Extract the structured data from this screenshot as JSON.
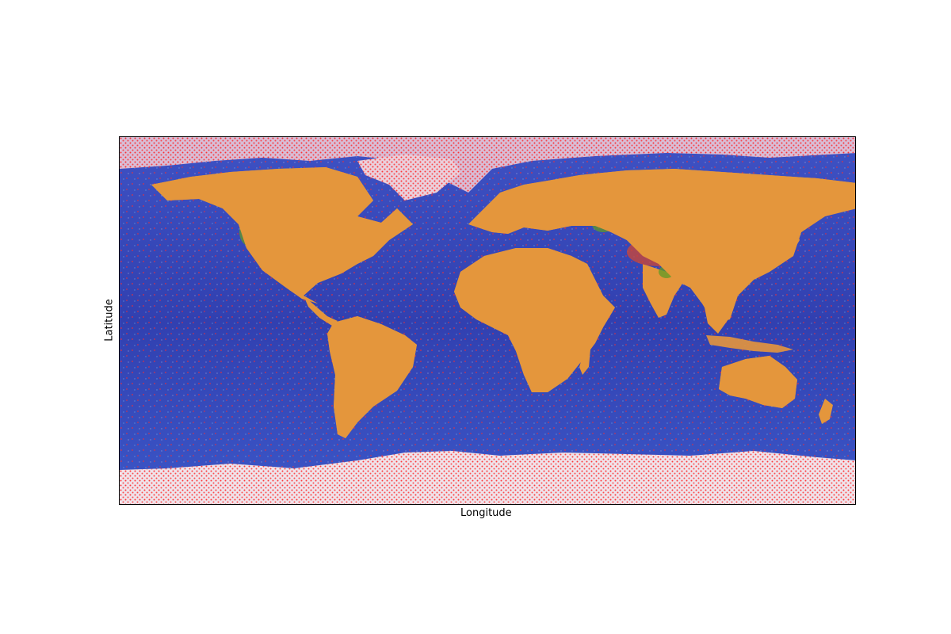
{
  "figure": {
    "xlabel": "Longitude",
    "ylabel": "Latitude"
  },
  "colors": {
    "ocean_deep": "#2b2f9e",
    "ocean_shallow": "#3a7fd8",
    "land": "#e8a040",
    "land_vegetation": "#5a9a2a",
    "ice": "#f0e8ee",
    "points": "#ff1a1a",
    "frame": "#000000"
  },
  "map_layers": [
    "ocean",
    "continents",
    "ice",
    "scatter-points"
  ]
}
